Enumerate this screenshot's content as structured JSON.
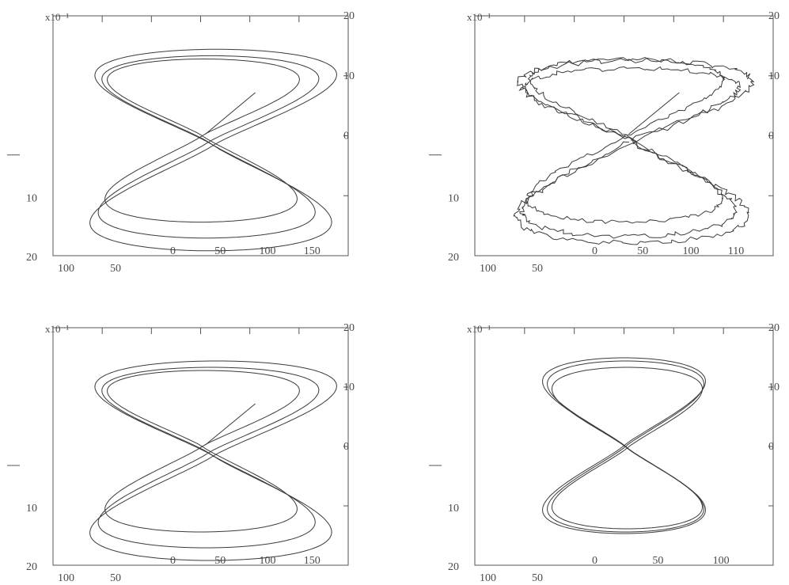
{
  "figure": {
    "panels": [
      {
        "frame_label": "x10⁻¹",
        "left_ticks": [
          "10",
          "20"
        ],
        "right_ticks": [
          "20",
          "10",
          "0"
        ],
        "bottom_ticks": [
          "100",
          "50",
          "0",
          "50",
          "100",
          "150"
        ],
        "trajectory": "two-winding-drift"
      },
      {
        "frame_label": "x10⁻¹",
        "left_ticks": [
          "10",
          "20"
        ],
        "right_ticks": [
          "20",
          "10",
          "0"
        ],
        "bottom_ticks": [
          "100",
          "50",
          "0",
          "50",
          "100",
          "110"
        ],
        "trajectory": "noisy-multi-winding"
      },
      {
        "frame_label": "x10⁻¹",
        "left_ticks": [
          "10",
          "20"
        ],
        "right_ticks": [
          "20",
          "10",
          "0"
        ],
        "bottom_ticks": [
          "100",
          "50",
          "0",
          "50",
          "100",
          "150"
        ],
        "trajectory": "two-winding-drift"
      },
      {
        "frame_label": "x10⁻¹",
        "left_ticks": [
          "10",
          "20"
        ],
        "right_ticks": [
          "20",
          "10",
          "0"
        ],
        "bottom_ticks": [
          "100",
          "50",
          "0",
          "50",
          "100"
        ],
        "trajectory": "converged-figure-eight"
      }
    ],
    "line_color": "#3a3a3a",
    "frame_color": "#555555"
  },
  "chart_data": [
    {
      "type": "line",
      "title": "",
      "xlabel": "",
      "ylabel": "",
      "xlim": [
        -100,
        150
      ],
      "ylim": [
        -20,
        20
      ],
      "grid": false,
      "series": [
        {
          "x": [
            10,
            80,
            110,
            95,
            40,
            0,
            -60,
            -120,
            -120,
            -80,
            0,
            25,
            60,
            90,
            125,
            110,
            50,
            0,
            -70,
            -125,
            -130,
            -90,
            -20,
            10
          ],
          "y": [
            5,
            0,
            -6,
            -12,
            -15,
            -15,
            -15,
            -12,
            -8,
            -4,
            0,
            4,
            8,
            11,
            14,
            16,
            18,
            19,
            18,
            14,
            10,
            6,
            2,
            0
          ]
        }
      ]
    },
    {
      "type": "line",
      "title": "",
      "xlabel": "",
      "ylabel": "",
      "xlim": [
        -100,
        110
      ],
      "ylim": [
        -20,
        20
      ],
      "grid": false,
      "series": [
        {
          "x": [
            10,
            70,
            105,
            90,
            40,
            0,
            -60,
            -115,
            -115,
            -75,
            0,
            25,
            60,
            90,
            120,
            105,
            50,
            0,
            -70,
            -120,
            -125,
            -85,
            -20,
            10
          ],
          "y": [
            5,
            0,
            -6,
            -12,
            -15,
            -15,
            -15,
            -12,
            -8,
            -4,
            0,
            4,
            8,
            11,
            14,
            16,
            18,
            19,
            18,
            14,
            10,
            6,
            2,
            0
          ]
        }
      ]
    },
    {
      "type": "line",
      "title": "",
      "xlabel": "",
      "ylabel": "",
      "xlim": [
        -100,
        150
      ],
      "ylim": [
        -20,
        20
      ],
      "grid": false,
      "series": [
        {
          "x": [
            10,
            80,
            110,
            95,
            40,
            0,
            -60,
            -120,
            -120,
            -80,
            0,
            25,
            60,
            90,
            125,
            110,
            50,
            0,
            -70,
            -125,
            -130,
            -90,
            -20,
            10
          ],
          "y": [
            5,
            0,
            -6,
            -12,
            -15,
            -15,
            -15,
            -12,
            -8,
            -4,
            0,
            4,
            8,
            11,
            14,
            16,
            18,
            19,
            18,
            14,
            10,
            6,
            2,
            0
          ]
        }
      ]
    },
    {
      "type": "line",
      "title": "",
      "xlabel": "",
      "ylabel": "",
      "xlim": [
        -100,
        100
      ],
      "ylim": [
        -20,
        20
      ],
      "grid": false,
      "series": [
        {
          "x": [
            0,
            60,
            85,
            70,
            0,
            -70,
            -85,
            -60,
            0,
            60,
            85,
            70,
            0,
            -70,
            -85,
            -60,
            0
          ],
          "y": [
            0,
            -4,
            -10,
            -15,
            -17,
            -15,
            -10,
            -4,
            0,
            4,
            10,
            15,
            17,
            15,
            10,
            4,
            0
          ]
        }
      ]
    }
  ]
}
